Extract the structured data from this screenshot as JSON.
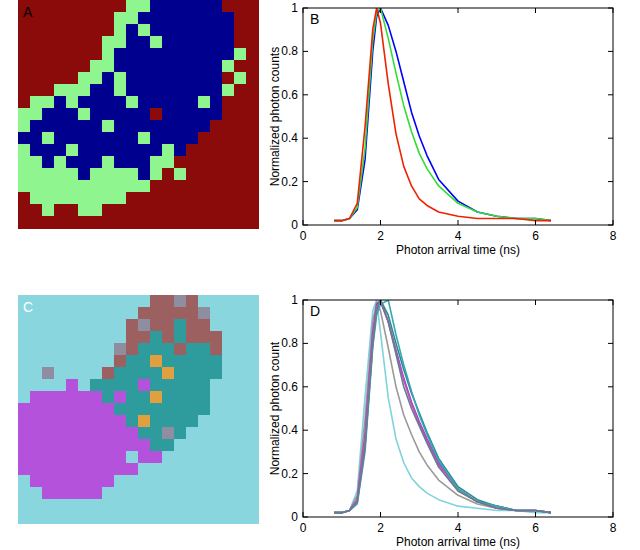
{
  "chart_data": [
    {
      "type": "image",
      "title": "A",
      "colors": [
        "#8b0a0a",
        "#00008f",
        "#8ff58f"
      ],
      "cells": [
        [
          0,
          0,
          0,
          0,
          0,
          0,
          0,
          0,
          0,
          2,
          2,
          1,
          1,
          1,
          1,
          1,
          1,
          0,
          0,
          0
        ],
        [
          0,
          0,
          0,
          0,
          0,
          0,
          0,
          0,
          2,
          2,
          1,
          1,
          1,
          1,
          1,
          1,
          1,
          1,
          0,
          0
        ],
        [
          0,
          0,
          0,
          0,
          0,
          0,
          0,
          0,
          2,
          1,
          2,
          1,
          1,
          1,
          1,
          1,
          1,
          1,
          0,
          0
        ],
        [
          0,
          0,
          0,
          0,
          0,
          0,
          0,
          2,
          2,
          1,
          1,
          2,
          1,
          1,
          1,
          1,
          1,
          1,
          0,
          0
        ],
        [
          0,
          0,
          0,
          0,
          0,
          0,
          0,
          2,
          1,
          1,
          1,
          1,
          1,
          1,
          1,
          1,
          1,
          1,
          2,
          0
        ],
        [
          0,
          0,
          0,
          0,
          0,
          0,
          2,
          2,
          1,
          1,
          1,
          1,
          1,
          1,
          1,
          1,
          1,
          2,
          0,
          0
        ],
        [
          0,
          0,
          0,
          0,
          0,
          2,
          2,
          1,
          2,
          1,
          1,
          1,
          1,
          1,
          1,
          1,
          1,
          0,
          2,
          0
        ],
        [
          0,
          0,
          0,
          2,
          2,
          2,
          1,
          1,
          2,
          1,
          1,
          1,
          1,
          1,
          1,
          1,
          1,
          2,
          0,
          0
        ],
        [
          0,
          2,
          2,
          1,
          2,
          1,
          1,
          1,
          1,
          2,
          1,
          1,
          1,
          1,
          1,
          2,
          1,
          0,
          0,
          0
        ],
        [
          2,
          2,
          1,
          1,
          1,
          2,
          1,
          1,
          1,
          1,
          1,
          0,
          1,
          1,
          1,
          1,
          1,
          0,
          0,
          0
        ],
        [
          2,
          1,
          1,
          1,
          1,
          1,
          1,
          2,
          1,
          1,
          1,
          1,
          1,
          1,
          1,
          1,
          0,
          0,
          0,
          0
        ],
        [
          1,
          1,
          2,
          1,
          1,
          1,
          1,
          1,
          1,
          1,
          2,
          1,
          1,
          1,
          1,
          0,
          0,
          0,
          0,
          0
        ],
        [
          2,
          1,
          1,
          1,
          2,
          1,
          1,
          1,
          1,
          1,
          1,
          1,
          2,
          1,
          0,
          0,
          0,
          0,
          0,
          0
        ],
        [
          2,
          2,
          1,
          2,
          1,
          1,
          1,
          2,
          1,
          1,
          1,
          2,
          2,
          0,
          0,
          0,
          0,
          0,
          0,
          0
        ],
        [
          2,
          2,
          2,
          2,
          2,
          1,
          2,
          2,
          2,
          2,
          1,
          2,
          0,
          2,
          0,
          0,
          0,
          0,
          0,
          0
        ],
        [
          2,
          2,
          2,
          2,
          2,
          2,
          2,
          2,
          2,
          2,
          2,
          0,
          0,
          0,
          0,
          0,
          0,
          0,
          0,
          0
        ],
        [
          0,
          2,
          2,
          2,
          2,
          2,
          2,
          2,
          2,
          0,
          0,
          0,
          0,
          0,
          0,
          0,
          0,
          0,
          0,
          0
        ],
        [
          0,
          0,
          2,
          0,
          0,
          2,
          2,
          0,
          0,
          0,
          0,
          0,
          0,
          0,
          0,
          0,
          0,
          0,
          0,
          0
        ],
        [
          0,
          0,
          0,
          0,
          0,
          0,
          0,
          0,
          0,
          0,
          0,
          0,
          0,
          0,
          0,
          0,
          0,
          0,
          0,
          0
        ]
      ]
    },
    {
      "type": "line",
      "title": "B",
      "x_label": "Photon arrival time (ns)",
      "y_label": "Normalized photon counts",
      "xlim": [
        0,
        8
      ],
      "ylim": [
        0,
        1
      ],
      "xticks": [
        0,
        2,
        4,
        6,
        8
      ],
      "yticks": [
        0,
        0.2,
        0.4,
        0.6,
        0.8,
        1
      ],
      "x": [
        0.8,
        1.0,
        1.2,
        1.4,
        1.6,
        1.8,
        1.9,
        2.0,
        2.2,
        2.4,
        2.6,
        2.8,
        3.0,
        3.2,
        3.5,
        4.0,
        4.5,
        5.0,
        5.5,
        6.0,
        6.4
      ],
      "series": [
        {
          "color": "#0000ff",
          "values": [
            0.02,
            0.02,
            0.03,
            0.07,
            0.3,
            0.8,
            0.96,
            1.0,
            0.92,
            0.8,
            0.66,
            0.52,
            0.41,
            0.32,
            0.21,
            0.11,
            0.06,
            0.04,
            0.03,
            0.03,
            0.02
          ]
        },
        {
          "color": "#33dd33",
          "values": [
            0.02,
            0.02,
            0.03,
            0.08,
            0.35,
            0.85,
            0.98,
            1.0,
            0.86,
            0.7,
            0.55,
            0.43,
            0.33,
            0.26,
            0.18,
            0.1,
            0.06,
            0.04,
            0.03,
            0.03,
            0.02
          ]
        },
        {
          "color": "#ee2200",
          "values": [
            0.02,
            0.02,
            0.03,
            0.1,
            0.45,
            0.9,
            1.0,
            0.93,
            0.65,
            0.42,
            0.27,
            0.18,
            0.12,
            0.09,
            0.06,
            0.04,
            0.03,
            0.03,
            0.03,
            0.02,
            0.02
          ]
        }
      ]
    },
    {
      "type": "image",
      "title": "C",
      "colors": [
        "#8ad6df",
        "#b552dc",
        "#2e9c9c",
        "#9c6060",
        "#8e8ea0",
        "#e0a040"
      ],
      "cells": [
        [
          0,
          0,
          0,
          0,
          0,
          0,
          0,
          0,
          0,
          0,
          0,
          3,
          3,
          4,
          3,
          0,
          0,
          0,
          0,
          0
        ],
        [
          0,
          0,
          0,
          0,
          0,
          0,
          0,
          0,
          0,
          0,
          3,
          3,
          3,
          3,
          3,
          4,
          0,
          0,
          0,
          0
        ],
        [
          0,
          0,
          0,
          0,
          0,
          0,
          0,
          0,
          0,
          3,
          4,
          3,
          3,
          2,
          3,
          3,
          0,
          0,
          0,
          0
        ],
        [
          0,
          0,
          0,
          0,
          0,
          0,
          0,
          0,
          0,
          3,
          3,
          2,
          3,
          2,
          3,
          3,
          3,
          0,
          0,
          0
        ],
        [
          0,
          0,
          0,
          0,
          0,
          0,
          0,
          0,
          4,
          3,
          2,
          2,
          2,
          3,
          2,
          2,
          3,
          0,
          0,
          0
        ],
        [
          0,
          0,
          0,
          0,
          0,
          0,
          0,
          0,
          3,
          2,
          2,
          5,
          2,
          2,
          2,
          2,
          2,
          0,
          0,
          0
        ],
        [
          0,
          0,
          4,
          0,
          0,
          0,
          0,
          3,
          2,
          2,
          2,
          2,
          5,
          2,
          2,
          2,
          2,
          0,
          0,
          0
        ],
        [
          0,
          0,
          0,
          0,
          1,
          0,
          2,
          2,
          2,
          2,
          1,
          2,
          2,
          2,
          2,
          2,
          0,
          0,
          0,
          0
        ],
        [
          0,
          1,
          1,
          1,
          1,
          1,
          1,
          2,
          1,
          2,
          2,
          5,
          2,
          2,
          2,
          2,
          0,
          0,
          0,
          0
        ],
        [
          1,
          1,
          1,
          1,
          1,
          1,
          1,
          1,
          2,
          2,
          2,
          2,
          2,
          2,
          2,
          2,
          0,
          0,
          0,
          0
        ],
        [
          1,
          1,
          1,
          1,
          1,
          1,
          1,
          1,
          1,
          2,
          5,
          2,
          2,
          2,
          2,
          0,
          0,
          0,
          0,
          0
        ],
        [
          1,
          1,
          1,
          1,
          1,
          1,
          1,
          1,
          1,
          1,
          2,
          2,
          4,
          2,
          0,
          0,
          0,
          0,
          0,
          0
        ],
        [
          1,
          1,
          1,
          1,
          1,
          1,
          1,
          1,
          1,
          1,
          1,
          2,
          2,
          0,
          0,
          0,
          0,
          0,
          0,
          0
        ],
        [
          1,
          1,
          1,
          1,
          1,
          1,
          1,
          1,
          1,
          0,
          1,
          1,
          0,
          0,
          0,
          0,
          0,
          0,
          0,
          0
        ],
        [
          1,
          1,
          1,
          1,
          1,
          1,
          1,
          1,
          1,
          1,
          0,
          0,
          0,
          0,
          0,
          0,
          0,
          0,
          0,
          0
        ],
        [
          0,
          1,
          1,
          1,
          1,
          1,
          1,
          1,
          0,
          0,
          0,
          0,
          0,
          0,
          0,
          0,
          0,
          0,
          0,
          0
        ],
        [
          0,
          0,
          1,
          1,
          1,
          1,
          1,
          0,
          0,
          0,
          0,
          0,
          0,
          0,
          0,
          0,
          0,
          0,
          0,
          0
        ],
        [
          0,
          0,
          0,
          0,
          0,
          0,
          0,
          0,
          0,
          0,
          0,
          0,
          0,
          0,
          0,
          0,
          0,
          0,
          0,
          0
        ],
        [
          0,
          0,
          0,
          0,
          0,
          0,
          0,
          0,
          0,
          0,
          0,
          0,
          0,
          0,
          0,
          0,
          0,
          0,
          0,
          0
        ]
      ]
    },
    {
      "type": "line",
      "title": "D",
      "x_label": "Photon arrival time (ns)",
      "y_label": "Normalized photon count",
      "xlim": [
        0,
        8
      ],
      "ylim": [
        0,
        1
      ],
      "xticks": [
        0,
        2,
        4,
        6,
        8
      ],
      "yticks": [
        0,
        0.2,
        0.4,
        0.6,
        0.8,
        1
      ],
      "x": [
        0.8,
        1.0,
        1.2,
        1.4,
        1.6,
        1.8,
        1.9,
        2.0,
        2.2,
        2.4,
        2.6,
        2.8,
        3.0,
        3.2,
        3.5,
        4.0,
        4.5,
        5.0,
        5.5,
        6.0,
        6.4
      ],
      "series": [
        {
          "color": "#7fd3dc",
          "values": [
            0.02,
            0.02,
            0.03,
            0.12,
            0.55,
            0.95,
            1.0,
            0.85,
            0.55,
            0.36,
            0.25,
            0.18,
            0.14,
            0.11,
            0.08,
            0.05,
            0.04,
            0.03,
            0.03,
            0.02,
            0.02
          ]
        },
        {
          "color": "#9a9a9a",
          "values": [
            0.02,
            0.02,
            0.03,
            0.1,
            0.45,
            0.9,
            0.99,
            0.95,
            0.78,
            0.6,
            0.47,
            0.38,
            0.3,
            0.24,
            0.17,
            0.1,
            0.06,
            0.04,
            0.03,
            0.03,
            0.02
          ]
        },
        {
          "color": "#9b3fc4",
          "values": [
            0.02,
            0.02,
            0.03,
            0.08,
            0.38,
            0.85,
            0.98,
            1.0,
            0.9,
            0.77,
            0.64,
            0.53,
            0.44,
            0.36,
            0.25,
            0.13,
            0.07,
            0.05,
            0.03,
            0.03,
            0.02
          ]
        },
        {
          "color": "#1f8f8f",
          "values": [
            0.02,
            0.02,
            0.03,
            0.07,
            0.33,
            0.8,
            0.95,
            1.0,
            0.93,
            0.8,
            0.68,
            0.57,
            0.48,
            0.39,
            0.27,
            0.14,
            0.08,
            0.05,
            0.03,
            0.03,
            0.02
          ]
        },
        {
          "color": "#c24fc8",
          "values": [
            0.02,
            0.02,
            0.03,
            0.08,
            0.36,
            0.83,
            0.97,
            0.99,
            0.9,
            0.76,
            0.63,
            0.52,
            0.43,
            0.35,
            0.24,
            0.13,
            0.07,
            0.04,
            0.03,
            0.03,
            0.02
          ]
        },
        {
          "color": "#3aa6b0",
          "values": [
            0.02,
            0.02,
            0.03,
            0.06,
            0.3,
            0.78,
            0.93,
            0.98,
            1.0,
            0.84,
            0.7,
            0.58,
            0.47,
            0.38,
            0.26,
            0.13,
            0.07,
            0.05,
            0.03,
            0.03,
            0.02
          ]
        },
        {
          "color": "#6c7a8c",
          "values": [
            0.02,
            0.02,
            0.03,
            0.07,
            0.32,
            0.8,
            0.96,
            1.0,
            0.9,
            0.75,
            0.6,
            0.5,
            0.42,
            0.34,
            0.23,
            0.12,
            0.07,
            0.04,
            0.03,
            0.03,
            0.02
          ]
        }
      ]
    }
  ]
}
